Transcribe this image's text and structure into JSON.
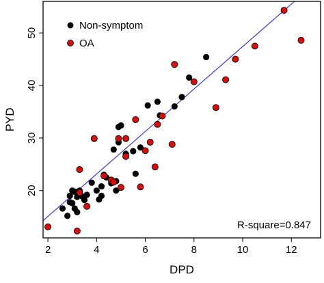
{
  "chart_data": {
    "type": "scatter",
    "title": "",
    "xlabel": "DPD",
    "ylabel": "PYD",
    "xlim": [
      1.8,
      13.2
    ],
    "ylim": [
      11.0,
      56.0
    ],
    "x_ticks": [
      2,
      4,
      6,
      8,
      10,
      12
    ],
    "y_ticks": [
      20,
      30,
      40,
      50
    ],
    "x_tick_labels": [
      "2",
      "4",
      "6",
      "8",
      "10",
      "12"
    ],
    "y_tick_labels": [
      "20",
      "30",
      "40",
      "50"
    ],
    "grid": false,
    "legend_position": "top-left",
    "annotation": "R-square=0.847",
    "regression_line": {
      "intercept": 7.0,
      "slope": 4.04,
      "color": "#3b3bc4"
    },
    "series": [
      {
        "name": "Non-symptom",
        "color": "#000000",
        "points": [
          [
            2.6,
            16.6
          ],
          [
            2.8,
            15.2
          ],
          [
            2.9,
            17.8
          ],
          [
            2.9,
            19.0
          ],
          [
            3.0,
            20.0
          ],
          [
            3.0,
            17.6
          ],
          [
            3.1,
            19.8
          ],
          [
            3.1,
            16.6
          ],
          [
            3.2,
            18.8
          ],
          [
            3.2,
            15.9
          ],
          [
            3.3,
            20.0
          ],
          [
            3.4,
            18.9
          ],
          [
            3.5,
            18.2
          ],
          [
            3.6,
            19.2
          ],
          [
            3.6,
            17.0
          ],
          [
            3.8,
            21.5
          ],
          [
            4.0,
            20.0
          ],
          [
            4.1,
            18.3
          ],
          [
            4.2,
            20.8
          ],
          [
            4.2,
            19.0
          ],
          [
            4.3,
            23.0
          ],
          [
            4.4,
            22.5
          ],
          [
            4.6,
            21.4
          ],
          [
            4.7,
            27.8
          ],
          [
            4.8,
            21.8
          ],
          [
            4.8,
            20.0
          ],
          [
            4.9,
            29.2
          ],
          [
            4.9,
            32.1
          ],
          [
            5.0,
            32.4
          ],
          [
            5.2,
            27.0
          ],
          [
            5.5,
            27.5
          ],
          [
            5.6,
            23.2
          ],
          [
            5.8,
            28.2
          ],
          [
            6.1,
            36.2
          ],
          [
            6.5,
            36.9
          ],
          [
            6.6,
            34.3
          ],
          [
            7.2,
            36.0
          ],
          [
            7.5,
            37.8
          ],
          [
            7.8,
            41.5
          ],
          [
            8.5,
            45.4
          ]
        ]
      },
      {
        "name": "OA",
        "color": "#cc1111",
        "points": [
          [
            2.0,
            13.1
          ],
          [
            3.2,
            12.3
          ],
          [
            3.3,
            24.0
          ],
          [
            3.3,
            19.6
          ],
          [
            3.6,
            17.0
          ],
          [
            3.9,
            29.9
          ],
          [
            4.3,
            22.8
          ],
          [
            4.6,
            22.0
          ],
          [
            4.7,
            21.6
          ],
          [
            4.9,
            29.9
          ],
          [
            5.0,
            20.6
          ],
          [
            5.2,
            26.5
          ],
          [
            5.2,
            29.9
          ],
          [
            5.6,
            33.5
          ],
          [
            5.8,
            20.7
          ],
          [
            6.0,
            27.6
          ],
          [
            6.2,
            29.2
          ],
          [
            6.4,
            24.5
          ],
          [
            6.5,
            32.6
          ],
          [
            6.7,
            34.2
          ],
          [
            7.1,
            28.8
          ],
          [
            7.2,
            44.0
          ],
          [
            8.0,
            40.7
          ],
          [
            8.9,
            35.8
          ],
          [
            9.3,
            41.1
          ],
          [
            9.7,
            45.0
          ],
          [
            10.5,
            47.5
          ],
          [
            11.7,
            54.3
          ],
          [
            12.4,
            48.6
          ]
        ]
      }
    ]
  }
}
